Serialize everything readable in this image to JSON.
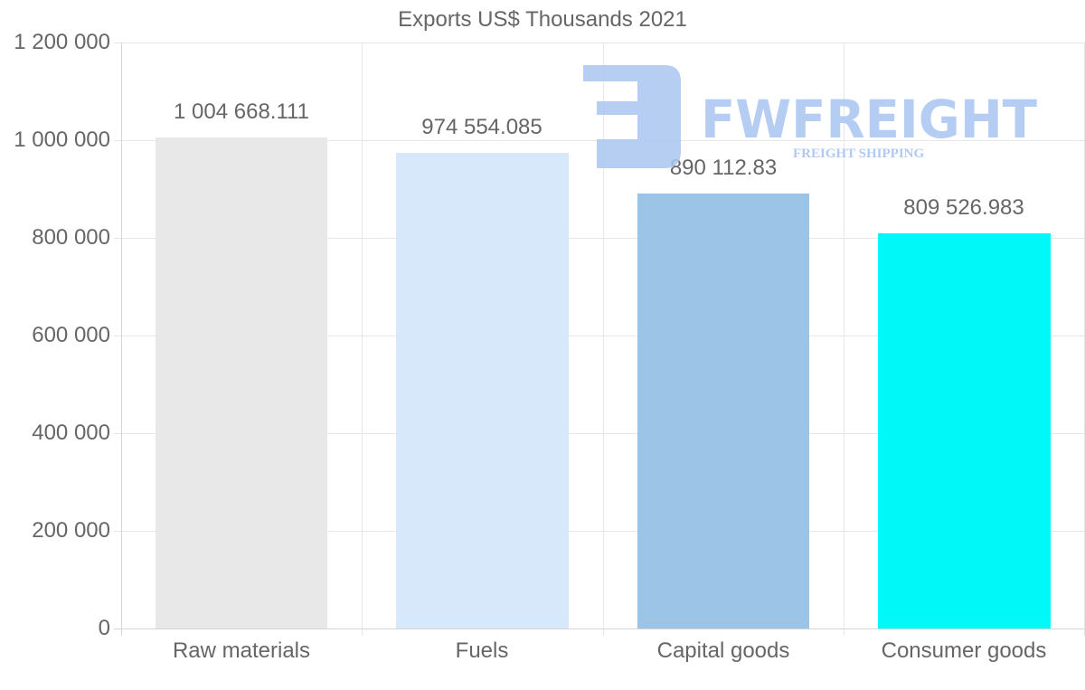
{
  "chart_data": {
    "type": "bar",
    "title": "Exports US$ Thousands 2021",
    "xlabel": "",
    "ylabel": "",
    "categories": [
      "Raw materials",
      "Fuels",
      "Capital goods",
      "Consumer goods"
    ],
    "values": [
      1004668.111,
      974554.085,
      890112.83,
      809526.983
    ],
    "value_labels": [
      "1 004 668.111",
      "974 554.085",
      "890 112.83",
      "809 526.983"
    ],
    "colors": [
      "#e8e8e8",
      "#d7e8fa",
      "#9bc4e6",
      "#00f8f8"
    ],
    "ylim": [
      0,
      1200000
    ],
    "yticks": [
      0,
      200000,
      400000,
      600000,
      800000,
      1000000,
      1200000
    ],
    "ytick_labels": [
      "0",
      "200 000",
      "400 000",
      "600 000",
      "800 000",
      "1 000 000",
      "1 200 000"
    ],
    "grid": true,
    "legend": "none"
  },
  "watermark": {
    "brand": "FWFREIGHT",
    "tagline": "FREIGHT SHIPPING",
    "color": "#a9c5f0"
  }
}
